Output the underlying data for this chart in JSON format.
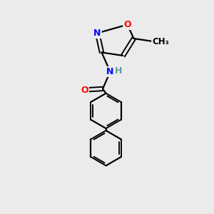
{
  "bg_color": "#ebebeb",
  "bond_color": "#000000",
  "atom_colors": {
    "O": "#ff0000",
    "N": "#0000ff",
    "H": "#5f9ea0",
    "C": "#000000"
  },
  "figsize": [
    3.0,
    3.0
  ],
  "dpi": 100
}
